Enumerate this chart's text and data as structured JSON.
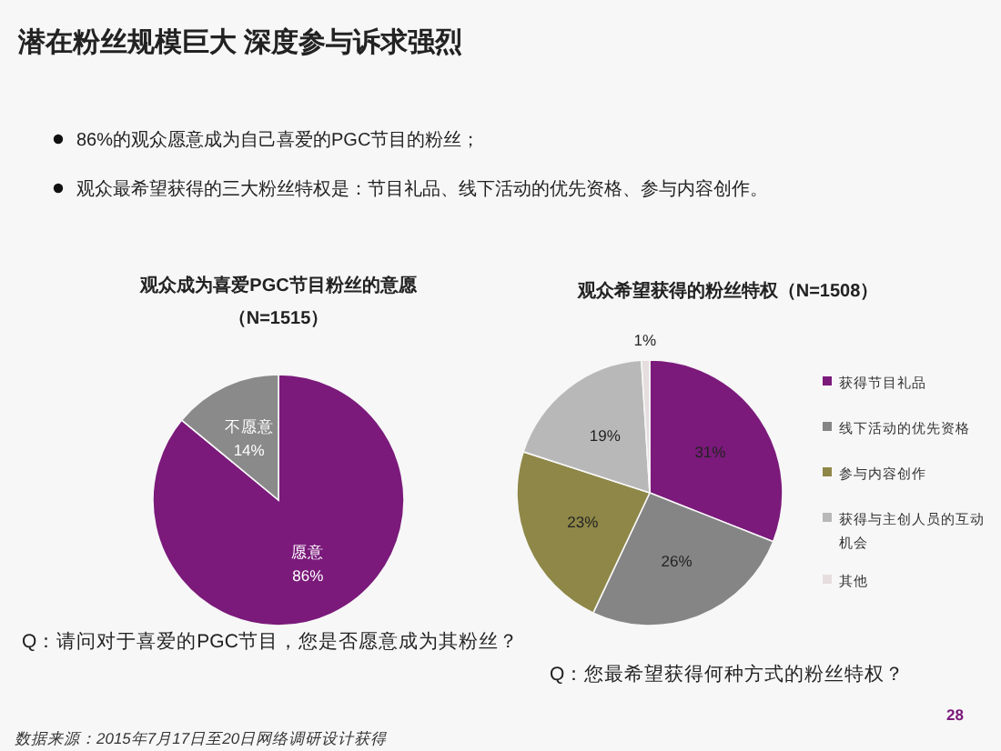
{
  "chart_data": [
    {
      "type": "pie",
      "title": "观众成为喜爱PGC节目粉丝的意愿",
      "subtitle": "（N=1515）",
      "categories": [
        "愿意",
        "不愿意"
      ],
      "values": [
        86,
        14
      ],
      "colors": [
        "#7b1a7b",
        "#8a8a8a"
      ],
      "value_labels": [
        "86%",
        "14%"
      ],
      "legend": false,
      "annotations": [
        "潜在粉丝规模巨大  深度参与诉求强烈",
        "86%的观众愿意成为自己喜爱的PGC节目的粉丝；",
        "观众最希望获得的三大粉丝特权是：节目礼品、线下活动的优先资格、参与内容创作。",
        "Q：请问对于喜爱的PGC节目，您是否愿意成为其粉丝？"
      ]
    },
    {
      "type": "pie",
      "title": "观众希望获得的粉丝特权（N=1508）",
      "categories": [
        "获得节目礼品",
        "线下活动的优先资格",
        "参与内容创作",
        "获得与主创人员的互动机会",
        "其他"
      ],
      "values": [
        31,
        26,
        23,
        19,
        1
      ],
      "colors": [
        "#7b1a7b",
        "#858585",
        "#8e8747",
        "#b8b8b8",
        "#e6dede"
      ],
      "value_labels": [
        "31%",
        "26%",
        "23%",
        "19%",
        "1%"
      ],
      "legend": "right",
      "annotations": [
        "Q：您最希望获得何种方式的粉丝特权？",
        "数据来源：2015年7月17日至20日网络调研设计获得",
        "28"
      ]
    }
  ]
}
